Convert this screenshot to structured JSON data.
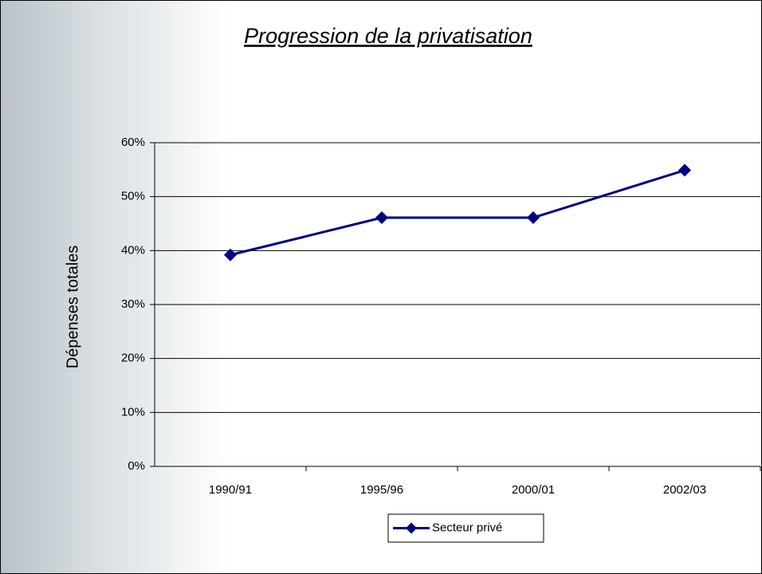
{
  "chart_data": {
    "type": "line",
    "title": "Progression de la privatisation",
    "y_label": "Dépenses totales",
    "categories": [
      "1990/91",
      "1995/96",
      "2000/01",
      "2002/03"
    ],
    "series": [
      {
        "name": "Secteur privé",
        "color": "#000080",
        "values": [
          39.2,
          46.1,
          46.1,
          54.9
        ]
      }
    ],
    "ylim": [
      0,
      60
    ],
    "yticks": [
      {
        "value": 0,
        "label": "0%"
      },
      {
        "value": 10,
        "label": "10%"
      },
      {
        "value": 20,
        "label": "20%"
      },
      {
        "value": 30,
        "label": "30%"
      },
      {
        "value": 40,
        "label": "40%"
      },
      {
        "value": 50,
        "label": "50%"
      },
      {
        "value": 60,
        "label": "60%"
      }
    ],
    "grid": true,
    "legend": "bottom"
  }
}
